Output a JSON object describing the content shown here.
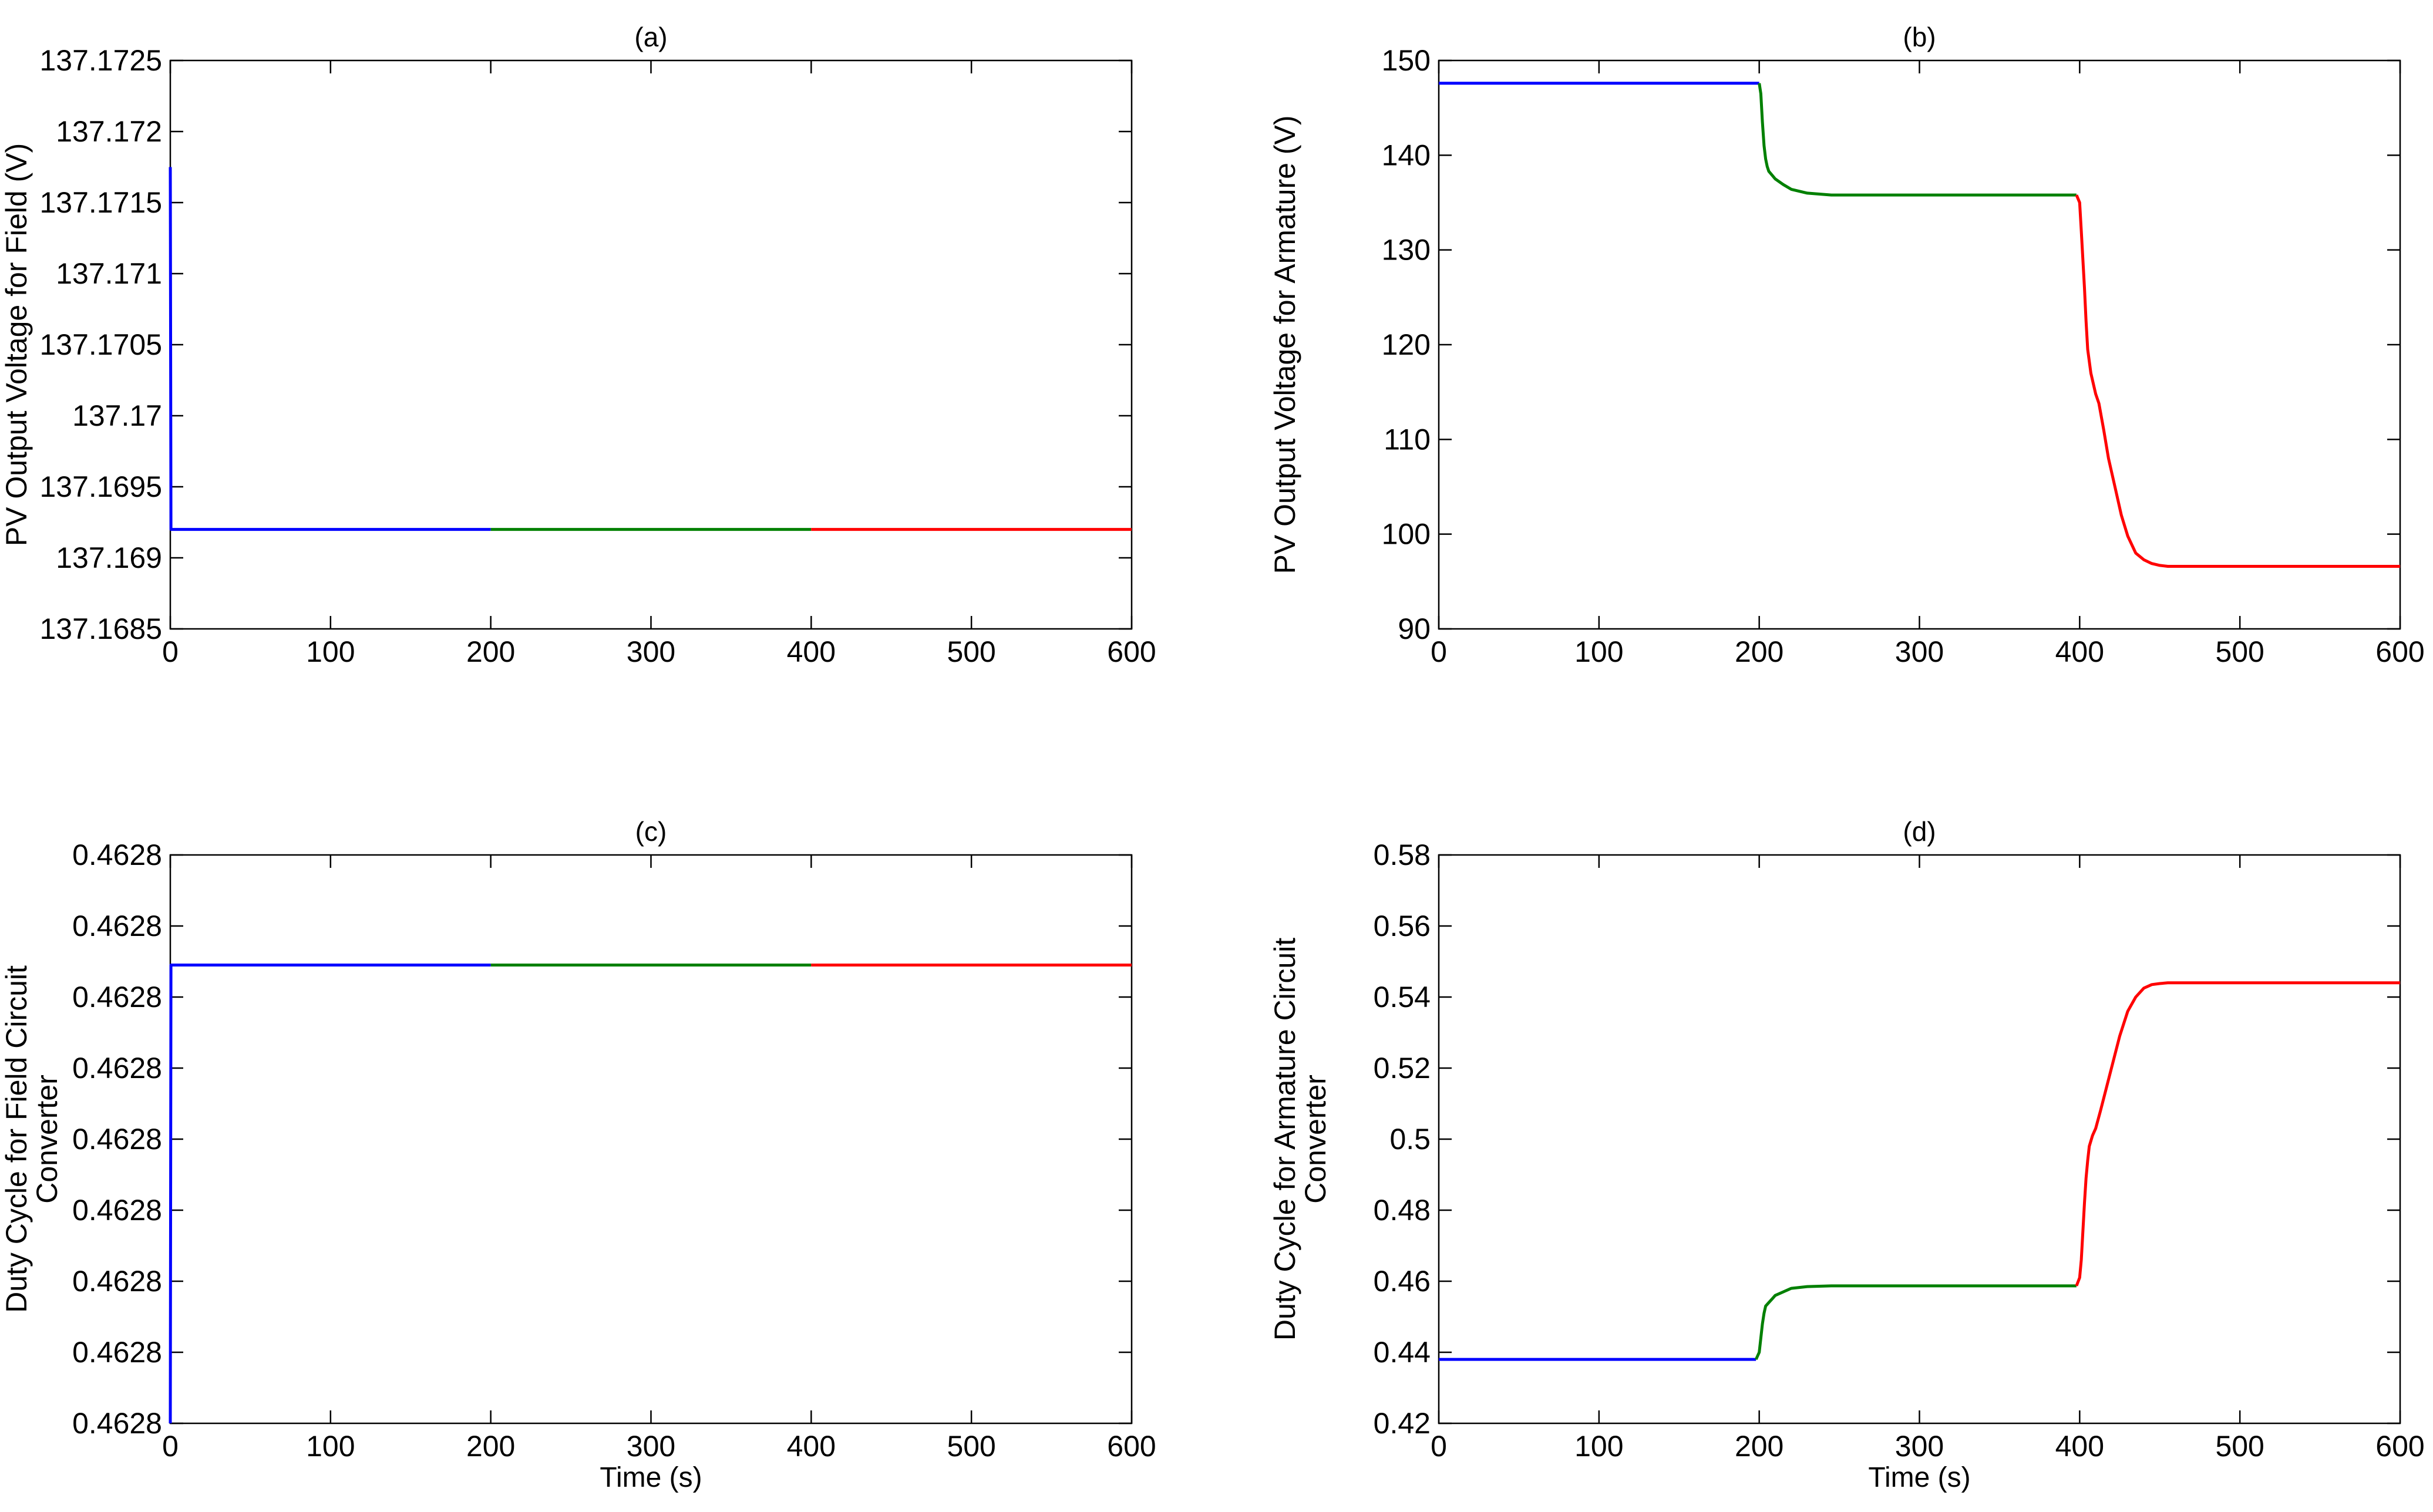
{
  "chart_data": [
    {
      "panel": "a",
      "type": "line",
      "title": "(a)",
      "xlabel": "",
      "ylabel": [
        "PV Output Voltage for Field (V)"
      ],
      "xlim": [
        0,
        600
      ],
      "ylim": [
        137.1685,
        137.1725
      ],
      "xticks": [
        0,
        100,
        200,
        300,
        400,
        500,
        600
      ],
      "xtick_labels": [
        "0",
        "100",
        "200",
        "300",
        "400",
        "500",
        "600"
      ],
      "yticks": [
        137.1685,
        137.169,
        137.1695,
        137.17,
        137.1705,
        137.171,
        137.1715,
        137.172,
        137.1725
      ],
      "ytick_labels": [
        "137.1685",
        "137.169",
        "137.1695",
        "137.17",
        "137.1705",
        "137.171",
        "137.1715",
        "137.172",
        "137.1725"
      ],
      "series": [
        {
          "color": "#0000ff",
          "x": [
            0,
            0.4,
            1,
            200
          ],
          "y": [
            137.17175,
            137.1692,
            137.1692,
            137.1692
          ]
        },
        {
          "color": "#008000",
          "x": [
            200,
            400
          ],
          "y": [
            137.1692,
            137.1692
          ]
        },
        {
          "color": "#ff0000",
          "x": [
            400,
            600
          ],
          "y": [
            137.1692,
            137.1692
          ]
        }
      ]
    },
    {
      "panel": "b",
      "type": "line",
      "title": "(b)",
      "xlabel": "",
      "ylabel": [
        "PV Output Voltage for Armature (V)"
      ],
      "xlim": [
        0,
        600
      ],
      "ylim": [
        90,
        150
      ],
      "xticks": [
        0,
        100,
        200,
        300,
        400,
        500,
        600
      ],
      "xtick_labels": [
        "0",
        "100",
        "200",
        "300",
        "400",
        "500",
        "600"
      ],
      "yticks": [
        90,
        100,
        110,
        120,
        130,
        140,
        150
      ],
      "ytick_labels": [
        "90",
        "100",
        "110",
        "120",
        "130",
        "140",
        "150"
      ],
      "series": [
        {
          "color": "#0000ff",
          "x": [
            0,
            200
          ],
          "y": [
            147.6,
            147.6
          ]
        },
        {
          "color": "#008000",
          "x": [
            200,
            201,
            202,
            203,
            204,
            205,
            206,
            208,
            210,
            215,
            220,
            230,
            245,
            260,
            300,
            350,
            398
          ],
          "y": [
            147.6,
            146.5,
            143.5,
            141.0,
            139.6,
            138.8,
            138.3,
            137.9,
            137.5,
            136.9,
            136.4,
            136.0,
            135.8,
            135.8,
            135.8,
            135.8,
            135.8
          ]
        },
        {
          "color": "#ff0000",
          "x": [
            398,
            400,
            401,
            402,
            403,
            404,
            405,
            407,
            410,
            412,
            415,
            418,
            422,
            426,
            430,
            435,
            440,
            445,
            450,
            455,
            470,
            500,
            550,
            600
          ],
          "y": [
            135.8,
            135.0,
            132.0,
            129.0,
            126.0,
            122.5,
            119.5,
            117.0,
            114.8,
            113.8,
            111.0,
            108.0,
            105.0,
            102.0,
            99.8,
            98.0,
            97.3,
            96.9,
            96.7,
            96.6,
            96.6,
            96.6,
            96.6,
            96.6
          ]
        }
      ]
    },
    {
      "panel": "c",
      "type": "line",
      "title": "(c)",
      "xlabel": "Time (s)",
      "ylabel": [
        "Duty Cycle for Field Circuit",
        "Converter"
      ],
      "xlim": [
        0,
        600
      ],
      "ylim": [
        0,
        8
      ],
      "xticks": [
        0,
        100,
        200,
        300,
        400,
        500,
        600
      ],
      "xtick_labels": [
        "0",
        "100",
        "200",
        "300",
        "400",
        "500",
        "600"
      ],
      "yticks": [
        0,
        1,
        2,
        3,
        4,
        5,
        6,
        7,
        8
      ],
      "ytick_labels": [
        "0.4628",
        "0.4628",
        "0.4628",
        "0.4628",
        "0.4628",
        "0.4628",
        "0.4628",
        "0.4628",
        "0.4628"
      ],
      "series": [
        {
          "color": "#0000ff",
          "x": [
            0,
            0.4,
            1,
            200
          ],
          "y": [
            0.0,
            6.45,
            6.45,
            6.45
          ]
        },
        {
          "color": "#008000",
          "x": [
            200,
            400
          ],
          "y": [
            6.45,
            6.45
          ]
        },
        {
          "color": "#ff0000",
          "x": [
            400,
            600
          ],
          "y": [
            6.45,
            6.45
          ]
        }
      ]
    },
    {
      "panel": "d",
      "type": "line",
      "title": "(d)",
      "xlabel": "Time (s)",
      "ylabel": [
        "Duty Cycle for Armature Circuit",
        "Converter"
      ],
      "xlim": [
        0,
        600
      ],
      "ylim": [
        0.42,
        0.58
      ],
      "xticks": [
        0,
        100,
        200,
        300,
        400,
        500,
        600
      ],
      "xtick_labels": [
        "0",
        "100",
        "200",
        "300",
        "400",
        "500",
        "600"
      ],
      "yticks": [
        0.42,
        0.44,
        0.46,
        0.48,
        0.5,
        0.52,
        0.54,
        0.56,
        0.58
      ],
      "ytick_labels": [
        "0.42",
        "0.44",
        "0.46",
        "0.48",
        "0.5",
        "0.52",
        "0.54",
        "0.56",
        "0.58"
      ],
      "series": [
        {
          "color": "#0000ff",
          "x": [
            0,
            198
          ],
          "y": [
            0.438,
            0.438
          ]
        },
        {
          "color": "#008000",
          "x": [
            198,
            200,
            201,
            202,
            203,
            204,
            206,
            208,
            210,
            215,
            220,
            230,
            245,
            300,
            350,
            398
          ],
          "y": [
            0.438,
            0.44,
            0.444,
            0.448,
            0.451,
            0.453,
            0.454,
            0.455,
            0.456,
            0.457,
            0.458,
            0.4585,
            0.4587,
            0.4587,
            0.4587,
            0.4587
          ]
        },
        {
          "color": "#ff0000",
          "x": [
            398,
            400,
            401,
            402,
            403,
            404,
            405,
            406,
            408,
            410,
            413,
            417,
            421,
            425,
            430,
            435,
            440,
            445,
            450,
            455,
            470,
            500,
            550,
            600
          ],
          "y": [
            0.4587,
            0.461,
            0.466,
            0.474,
            0.482,
            0.489,
            0.494,
            0.498,
            0.501,
            0.503,
            0.508,
            0.515,
            0.522,
            0.529,
            0.536,
            0.54,
            0.5425,
            0.5435,
            0.5438,
            0.544,
            0.544,
            0.544,
            0.544,
            0.544
          ]
        }
      ]
    }
  ]
}
